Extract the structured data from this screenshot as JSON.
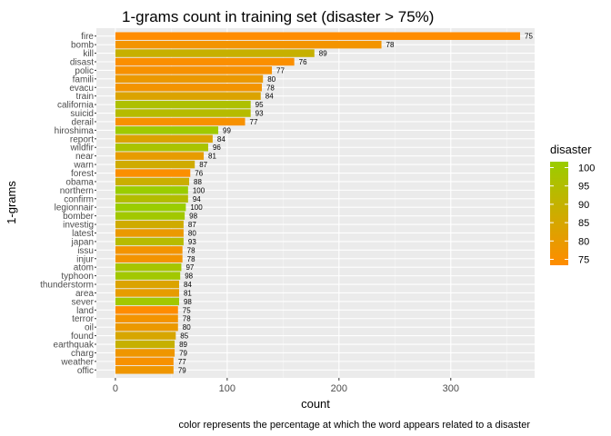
{
  "chart_data": {
    "type": "bar",
    "orientation": "horizontal",
    "title": "1-grams count in training set (disaster > 75%)",
    "xlabel": "count",
    "ylabel": "1-grams",
    "caption": "color represents the percentage at which the word appears related to a disaster",
    "xlim": [
      -17,
      375
    ],
    "x_ticks": [
      0,
      100,
      200,
      300
    ],
    "grid": true,
    "legend": {
      "title": "disaster",
      "placement": "right",
      "ticks": [
        100,
        95,
        90,
        85,
        80,
        75
      ],
      "range": [
        75,
        100
      ],
      "low_color": "#FF8C00",
      "high_color": "#9ACD00"
    },
    "bars": [
      {
        "word": "fire",
        "count": 362,
        "disaster": 75
      },
      {
        "word": "bomb",
        "count": 238,
        "disaster": 78
      },
      {
        "word": "kill",
        "count": 178,
        "disaster": 89
      },
      {
        "word": "disast",
        "count": 160,
        "disaster": 76
      },
      {
        "word": "polic",
        "count": 140,
        "disaster": 77
      },
      {
        "word": "famili",
        "count": 132,
        "disaster": 80
      },
      {
        "word": "evacu",
        "count": 131,
        "disaster": 78
      },
      {
        "word": "train",
        "count": 130,
        "disaster": 84
      },
      {
        "word": "california",
        "count": 121,
        "disaster": 95
      },
      {
        "word": "suicid",
        "count": 121,
        "disaster": 93
      },
      {
        "word": "derail",
        "count": 116,
        "disaster": 77
      },
      {
        "word": "hiroshima",
        "count": 92,
        "disaster": 99
      },
      {
        "word": "report",
        "count": 87,
        "disaster": 84
      },
      {
        "word": "wildfir",
        "count": 83,
        "disaster": 96
      },
      {
        "word": "near",
        "count": 79,
        "disaster": 81
      },
      {
        "word": "warn",
        "count": 71,
        "disaster": 87
      },
      {
        "word": "forest",
        "count": 67,
        "disaster": 76
      },
      {
        "word": "obama",
        "count": 66,
        "disaster": 88
      },
      {
        "word": "northern",
        "count": 65,
        "disaster": 100
      },
      {
        "word": "confirm",
        "count": 65,
        "disaster": 94
      },
      {
        "word": "legionnair",
        "count": 63,
        "disaster": 100
      },
      {
        "word": "bomber",
        "count": 62,
        "disaster": 98
      },
      {
        "word": "investig",
        "count": 61,
        "disaster": 87
      },
      {
        "word": "latest",
        "count": 61,
        "disaster": 80
      },
      {
        "word": "japan",
        "count": 61,
        "disaster": 93
      },
      {
        "word": "issu",
        "count": 60,
        "disaster": 78
      },
      {
        "word": "injur",
        "count": 60,
        "disaster": 78
      },
      {
        "word": "atom",
        "count": 59,
        "disaster": 97
      },
      {
        "word": "typhoon",
        "count": 58,
        "disaster": 98
      },
      {
        "word": "thunderstorm",
        "count": 57,
        "disaster": 84
      },
      {
        "word": "area",
        "count": 57,
        "disaster": 81
      },
      {
        "word": "sever",
        "count": 57,
        "disaster": 98
      },
      {
        "word": "land",
        "count": 56,
        "disaster": 75
      },
      {
        "word": "terror",
        "count": 56,
        "disaster": 78
      },
      {
        "word": "oil",
        "count": 56,
        "disaster": 80
      },
      {
        "word": "found",
        "count": 54,
        "disaster": 85
      },
      {
        "word": "earthquak",
        "count": 53,
        "disaster": 89
      },
      {
        "word": "charg",
        "count": 53,
        "disaster": 79
      },
      {
        "word": "weather",
        "count": 52,
        "disaster": 77
      },
      {
        "word": "offic",
        "count": 52,
        "disaster": 79
      }
    ]
  }
}
